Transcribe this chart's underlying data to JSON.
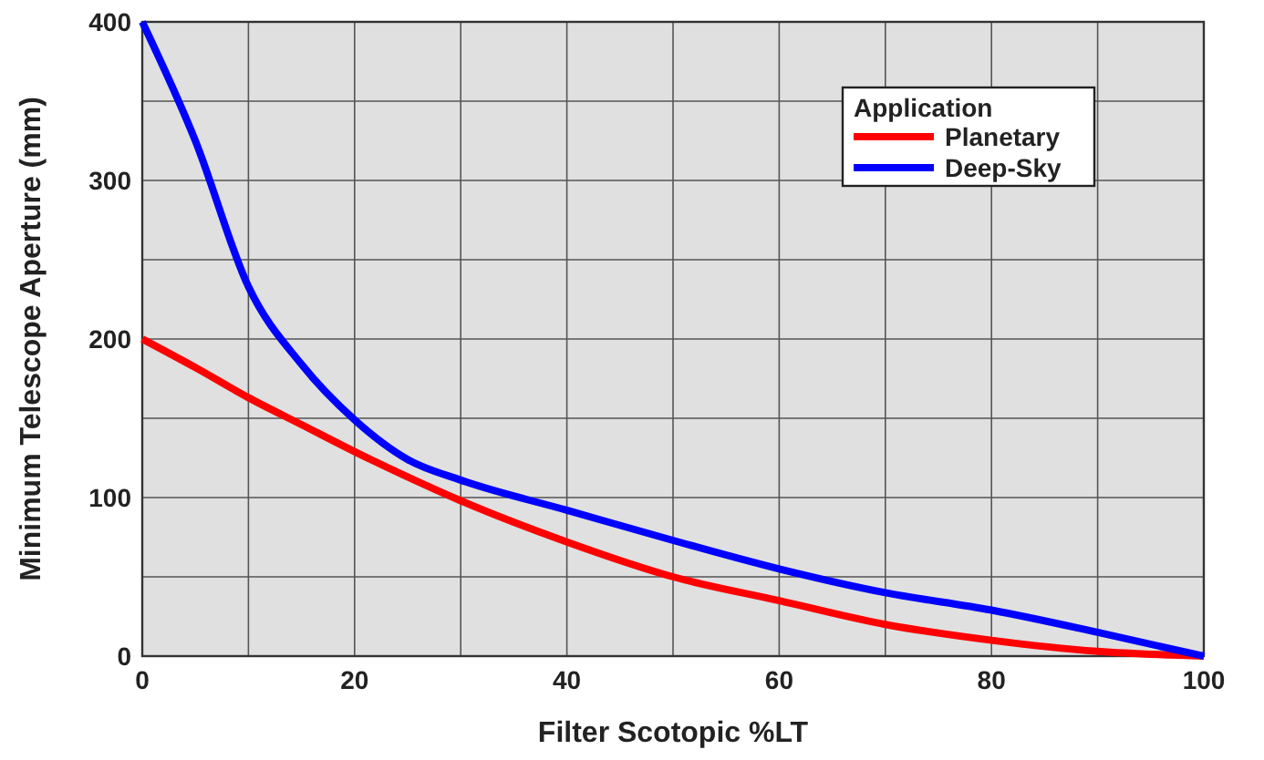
{
  "chart_data": {
    "type": "line",
    "xlabel": "Filter Scotopic %LT",
    "ylabel": "Minimum Telescope Aperture (mm)",
    "legend_title": "Application",
    "legend": "top right",
    "grid": true,
    "marker": "none",
    "line_style": "solid",
    "x": [
      0,
      5,
      10,
      15,
      20,
      25,
      30,
      40,
      50,
      60,
      70,
      80,
      90,
      100
    ],
    "xlim": [
      0,
      100
    ],
    "xticks": [
      0,
      {
        "value": 10,
        "label": null
      },
      20,
      {
        "value": 30,
        "label": null
      },
      40,
      {
        "value": 50,
        "label": null
      },
      60,
      {
        "value": 70,
        "label": null
      },
      80,
      {
        "value": 90,
        "label": null
      },
      100
    ],
    "ylim": [
      0,
      400
    ],
    "yticks": [
      0,
      {
        "value": 50,
        "label": null
      },
      100,
      {
        "value": 150,
        "label": null
      },
      200,
      {
        "value": 250,
        "label": null
      },
      300,
      {
        "value": 350,
        "label": null
      },
      400
    ],
    "series": [
      {
        "name": "Planetary",
        "color": "#ff0000",
        "values": [
          200,
          182,
          163,
          146,
          129,
          113,
          98,
          72,
          50,
          35,
          20,
          10,
          3,
          0
        ]
      },
      {
        "name": "Deep-Sky",
        "color": "#0000ff",
        "values": [
          400,
          325,
          233,
          184,
          149,
          124,
          111,
          92,
          73,
          55,
          40,
          29,
          15,
          0
        ]
      }
    ]
  }
}
